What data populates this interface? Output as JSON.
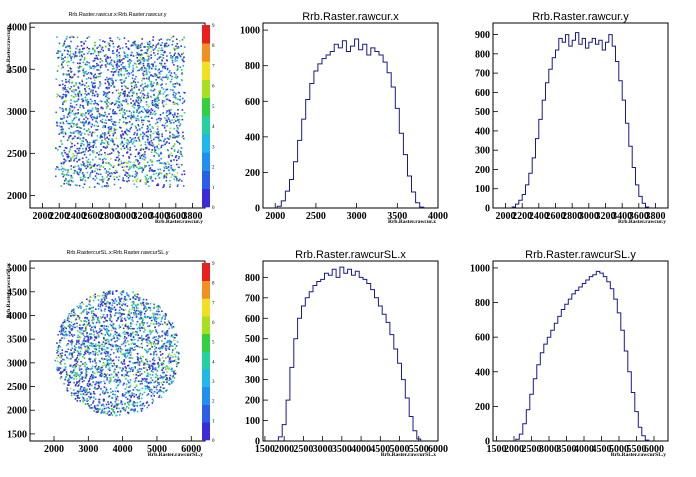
{
  "chart_data": [
    {
      "type": "heatmap",
      "title": "Rrb.Raster.rawcur.x:Rrb.Raster.rawcur.y",
      "xlabel": "Rrb.Raster.rawcur.y",
      "ylabel": "Rrb.Raster.rawcur.x",
      "xlim": [
        1850,
        3950
      ],
      "ylim": [
        1850,
        4050
      ],
      "x_ticks": [
        "2000",
        "2200",
        "2400",
        "2600",
        "2800",
        "3000",
        "3200",
        "3400",
        "3600",
        "3800"
      ],
      "y_ticks": [
        "2000",
        "2500",
        "3000",
        "3500",
        "4000"
      ],
      "shape": "square",
      "region": {
        "x": [
          2150,
          3700
        ],
        "y": [
          2100,
          3900
        ]
      },
      "colorbar": {
        "min": 0,
        "max": 9,
        "ticks": [
          "0",
          "1",
          "2",
          "3",
          "4",
          "5",
          "6",
          "7",
          "8",
          "9"
        ]
      }
    },
    {
      "type": "histogram",
      "title": "Rrb.Raster.rawcur.x",
      "xlabel": "Rrb.Raster.rawcur.x",
      "xlim": [
        1850,
        4000
      ],
      "ylim": [
        0,
        1040
      ],
      "x_ticks": [
        "2000",
        "2500",
        "3000",
        "3500",
        "4000"
      ],
      "y_ticks": [
        "0",
        "200",
        "400",
        "600",
        "800",
        "1000"
      ],
      "x": [
        2050,
        2100,
        2150,
        2200,
        2250,
        2300,
        2350,
        2400,
        2450,
        2500,
        2550,
        2600,
        2650,
        2700,
        2750,
        2800,
        2850,
        2900,
        2950,
        3000,
        3050,
        3100,
        3150,
        3200,
        3250,
        3300,
        3350,
        3400,
        3450,
        3500,
        3550,
        3600,
        3650,
        3700,
        3750,
        3800
      ],
      "values": [
        10,
        40,
        95,
        160,
        260,
        380,
        500,
        610,
        700,
        770,
        810,
        840,
        860,
        880,
        920,
        900,
        940,
        880,
        910,
        950,
        890,
        920,
        860,
        900,
        880,
        860,
        820,
        760,
        680,
        560,
        420,
        300,
        180,
        90,
        30,
        5
      ]
    },
    {
      "type": "histogram",
      "title": "Rrb.Raster.rawcur.y",
      "xlabel": "Rrb.Raster.rawcur.y",
      "xlim": [
        1850,
        3950
      ],
      "ylim": [
        0,
        960
      ],
      "x_ticks": [
        "2000",
        "2200",
        "2400",
        "2600",
        "2800",
        "3000",
        "3200",
        "3400",
        "3600",
        "3800"
      ],
      "y_ticks": [
        "0",
        "100",
        "200",
        "300",
        "400",
        "500",
        "600",
        "700",
        "800",
        "900"
      ],
      "x": [
        2100,
        2140,
        2180,
        2220,
        2260,
        2300,
        2340,
        2380,
        2420,
        2460,
        2500,
        2540,
        2580,
        2620,
        2660,
        2700,
        2740,
        2780,
        2820,
        2860,
        2900,
        2940,
        2980,
        3020,
        3060,
        3100,
        3140,
        3180,
        3220,
        3260,
        3300,
        3340,
        3380,
        3420,
        3460,
        3500,
        3540,
        3580,
        3620,
        3660,
        3700
      ],
      "values": [
        5,
        20,
        40,
        70,
        120,
        180,
        260,
        360,
        460,
        560,
        650,
        720,
        780,
        820,
        880,
        860,
        900,
        840,
        870,
        910,
        850,
        880,
        830,
        860,
        880,
        850,
        870,
        820,
        860,
        900,
        840,
        760,
        660,
        560,
        440,
        320,
        210,
        120,
        60,
        25,
        5
      ]
    },
    {
      "type": "heatmap",
      "title": "Rrb.RastercurSL.x:Rrb.Raster.rawcurSL.y",
      "xlabel": "Rrb.Raster.rawcurSL.y",
      "ylabel": "Rrb.Raster.rawcurSL.x",
      "xlim": [
        1300,
        6400
      ],
      "ylim": [
        1350,
        5150
      ],
      "x_ticks": [
        "2000",
        "3000",
        "4000",
        "5000",
        "6000"
      ],
      "y_ticks": [
        "1500",
        "2000",
        "2500",
        "3000",
        "3500",
        "4000",
        "4500",
        "5000"
      ],
      "shape": "circle",
      "region": {
        "x": [
          2000,
          5650
        ],
        "y": [
          1900,
          4550
        ]
      },
      "colorbar": {
        "min": 0,
        "max": 9,
        "ticks": [
          "0",
          "1",
          "2",
          "3",
          "4",
          "5",
          "6",
          "7",
          "8",
          "9"
        ]
      }
    },
    {
      "type": "histogram",
      "title": "Rrb.Raster.rawcurSL.x",
      "xlabel": "Rrb.Raster.rawcurSL.x",
      "xlim": [
        1450,
        6000
      ],
      "ylim": [
        0,
        880
      ],
      "x_ticks": [
        "1500",
        "2000",
        "2500",
        "3000",
        "3500",
        "4000",
        "4500",
        "5000",
        "5500",
        "6000"
      ],
      "y_ticks": [
        "0",
        "100",
        "200",
        "300",
        "400",
        "500",
        "600",
        "700",
        "800"
      ],
      "x": [
        1900,
        2000,
        2100,
        2200,
        2300,
        2400,
        2500,
        2600,
        2700,
        2800,
        2900,
        3000,
        3100,
        3200,
        3300,
        3400,
        3500,
        3600,
        3700,
        3800,
        3900,
        4000,
        4100,
        4200,
        4300,
        4400,
        4500,
        4600,
        4700,
        4800,
        4900,
        5000,
        5100,
        5200,
        5300,
        5400,
        5500
      ],
      "values": [
        20,
        80,
        200,
        360,
        500,
        600,
        660,
        700,
        730,
        760,
        780,
        790,
        820,
        810,
        840,
        800,
        850,
        820,
        840,
        810,
        830,
        800,
        790,
        770,
        740,
        700,
        660,
        620,
        580,
        520,
        450,
        380,
        300,
        210,
        120,
        50,
        10
      ]
    },
    {
      "type": "histogram",
      "title": "Rrb.Raster.rawcurSL.y",
      "xlabel": "Rrb.Raster.rawcurSL.y",
      "xlim": [
        1400,
        6400
      ],
      "ylim": [
        0,
        1040
      ],
      "x_ticks": [
        "1500",
        "2000",
        "2500",
        "3000",
        "3500",
        "4000",
        "4500",
        "5000",
        "5500",
        "6000"
      ],
      "y_ticks": [
        "0",
        "200",
        "400",
        "600",
        "800",
        "1000"
      ],
      "x": [
        2100,
        2200,
        2300,
        2400,
        2500,
        2600,
        2700,
        2800,
        2900,
        3000,
        3100,
        3200,
        3300,
        3400,
        3500,
        3600,
        3700,
        3800,
        3900,
        4000,
        4100,
        4200,
        4300,
        4400,
        4500,
        4600,
        4700,
        4800,
        4900,
        5000,
        5100,
        5200,
        5300,
        5400,
        5500,
        5600,
        5700,
        5800
      ],
      "values": [
        10,
        40,
        100,
        180,
        270,
        360,
        440,
        510,
        560,
        600,
        640,
        680,
        720,
        760,
        790,
        820,
        850,
        870,
        890,
        910,
        930,
        950,
        960,
        980,
        970,
        950,
        920,
        880,
        820,
        740,
        640,
        520,
        400,
        280,
        170,
        80,
        30,
        5
      ]
    }
  ]
}
